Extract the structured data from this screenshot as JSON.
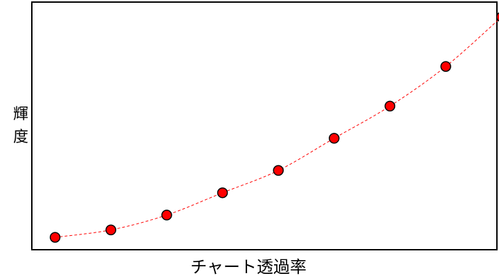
{
  "chart_data": {
    "type": "scatter",
    "xlabel": "チャート透過率",
    "ylabel": "輝度",
    "grid": false,
    "xlim": [
      0,
      100
    ],
    "ylim": [
      0,
      100
    ],
    "series": [
      {
        "values": [
          {
            "x": 5,
            "y": 5
          },
          {
            "x": 17,
            "y": 8
          },
          {
            "x": 29,
            "y": 14
          },
          {
            "x": 41,
            "y": 23
          },
          {
            "x": 53,
            "y": 32
          },
          {
            "x": 65,
            "y": 45
          },
          {
            "x": 77,
            "y": 58
          },
          {
            "x": 89,
            "y": 74
          },
          {
            "x": 101,
            "y": 94
          }
        ],
        "marker_color": "#ff0000",
        "line_color": "#ff0000",
        "line_style": "dashed"
      }
    ]
  }
}
